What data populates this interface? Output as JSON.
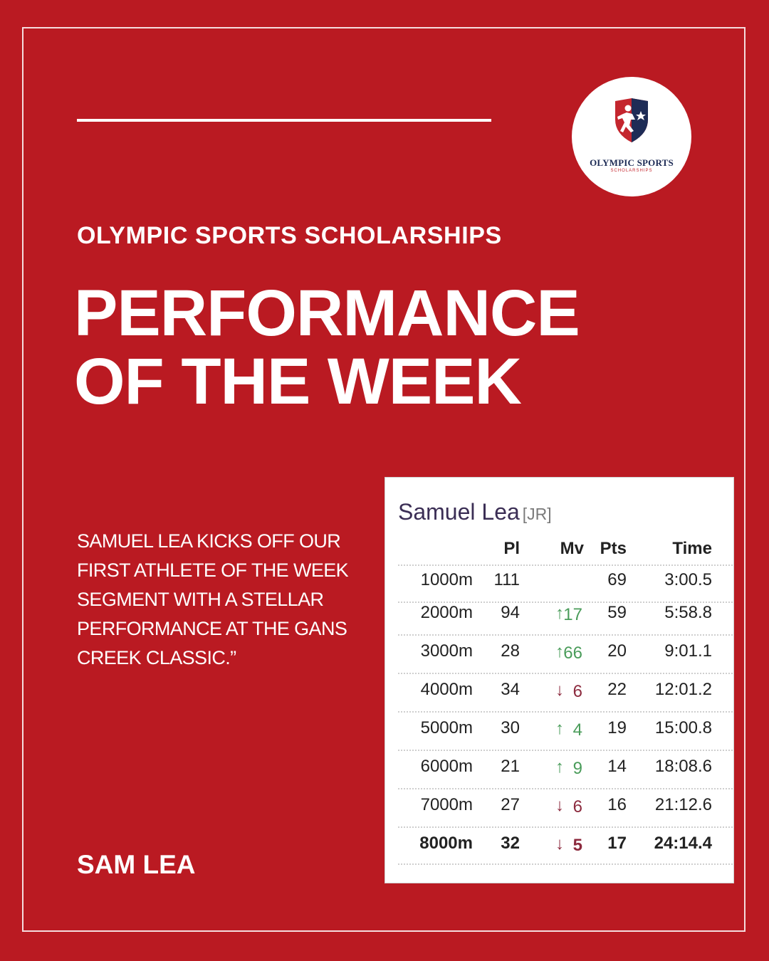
{
  "org_title": "OLYMPIC SPORTS SCHOLARSHIPS",
  "headline": [
    "PERFORMANCE",
    "OF THE WEEK"
  ],
  "logo": {
    "name": "OLYMPIC SPORTS",
    "subtitle": "SCHOLARSHIPS",
    "icon": "runner-shield-icon"
  },
  "story_lines": [
    "SAMUEL LEA KICKS OFF OUR",
    "FIRST ATHLETE OF THE WEEK",
    "SEGMENT WITH A STELLAR",
    "PERFORMANCE AT THE GANS",
    "CREEK CLASSIC.”"
  ],
  "athlete_name": "SAM LEA",
  "card": {
    "name": "Samuel Lea",
    "grade": "[JR]",
    "headers": {
      "pl": "Pl",
      "mv": "Mv",
      "pts": "Pts",
      "time": "Time"
    },
    "rows": [
      {
        "split": "1000m",
        "pl": "111",
        "arrow": "",
        "mv": "",
        "dir": "none",
        "pts": "69",
        "time": "3:00.5"
      },
      {
        "split": "2000m",
        "pl": "94",
        "arrow": "↑",
        "mv": "17",
        "dir": "up",
        "pts": "59",
        "time": "5:58.8"
      },
      {
        "split": "3000m",
        "pl": "28",
        "arrow": "↑",
        "mv": "66",
        "dir": "up",
        "pts": "20",
        "time": "9:01.1"
      },
      {
        "split": "4000m",
        "pl": "34",
        "arrow": "↓",
        "mv": "6",
        "dir": "down",
        "pts": "22",
        "time": "12:01.2"
      },
      {
        "split": "5000m",
        "pl": "30",
        "arrow": "↑",
        "mv": "4",
        "dir": "up",
        "pts": "19",
        "time": "15:00.8"
      },
      {
        "split": "6000m",
        "pl": "21",
        "arrow": "↑",
        "mv": "9",
        "dir": "up",
        "pts": "14",
        "time": "18:08.6"
      },
      {
        "split": "7000m",
        "pl": "27",
        "arrow": "↓",
        "mv": "6",
        "dir": "down",
        "pts": "16",
        "time": "21:12.6"
      },
      {
        "split": "8000m",
        "pl": "32",
        "arrow": "↓",
        "mv": "5",
        "dir": "down",
        "pts": "17",
        "time": "24:14.4"
      }
    ]
  },
  "colors": {
    "background": "#BA1A22",
    "up": "#4A9C5A",
    "down": "#8C2A3E",
    "name": "#3B2E55"
  }
}
